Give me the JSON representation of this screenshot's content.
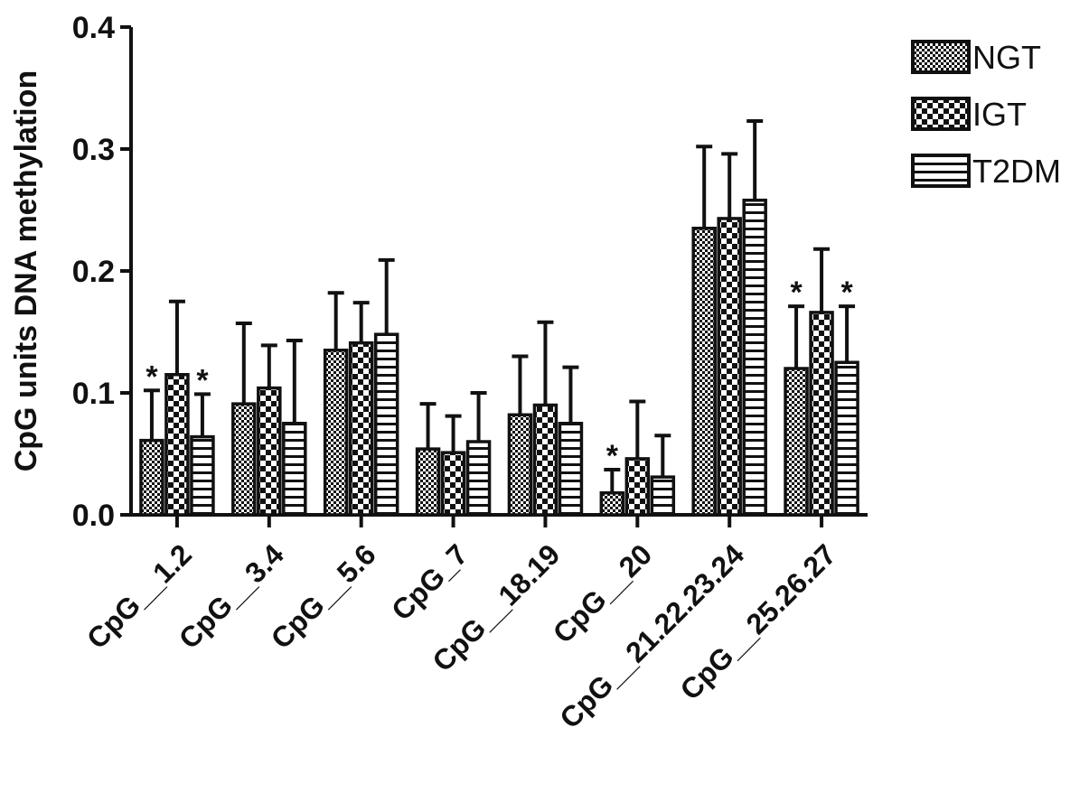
{
  "chart_data": {
    "type": "bar",
    "title": "",
    "xlabel": "",
    "ylabel": "CpG units DNA methylation",
    "ylim": [
      0,
      0.4
    ],
    "yticks": [
      "0.0",
      "0.1",
      "0.2",
      "0.3",
      "0.4"
    ],
    "legend_position": "top-right",
    "categories": [
      "CpG__1.2",
      "CpG__3.4",
      "CpG__5.6",
      "CpG_7",
      "CpG__18.19",
      "CpG__20",
      "CpG__21.22.23.24",
      "CpG__25.26.27"
    ],
    "series": [
      {
        "name": "NGT",
        "pattern": "fine-dots",
        "values": [
          0.061,
          0.091,
          0.135,
          0.054,
          0.082,
          0.018,
          0.235,
          0.12
        ],
        "error": [
          0.041,
          0.066,
          0.047,
          0.037,
          0.048,
          0.019,
          0.067,
          0.051
        ],
        "significant": [
          true,
          false,
          false,
          false,
          false,
          true,
          false,
          true
        ]
      },
      {
        "name": "IGT",
        "pattern": "checker",
        "values": [
          0.115,
          0.104,
          0.141,
          0.051,
          0.09,
          0.046,
          0.243,
          0.166
        ],
        "error": [
          0.06,
          0.035,
          0.033,
          0.03,
          0.068,
          0.047,
          0.053,
          0.052
        ],
        "significant": [
          false,
          false,
          false,
          false,
          false,
          false,
          false,
          false
        ]
      },
      {
        "name": "T2DM",
        "pattern": "horizontal-lines",
        "values": [
          0.064,
          0.075,
          0.148,
          0.06,
          0.075,
          0.031,
          0.258,
          0.125
        ],
        "error": [
          0.035,
          0.068,
          0.061,
          0.04,
          0.046,
          0.034,
          0.065,
          0.046
        ],
        "significant": [
          true,
          false,
          false,
          false,
          false,
          false,
          false,
          true
        ]
      }
    ],
    "significance_marker": "*"
  }
}
